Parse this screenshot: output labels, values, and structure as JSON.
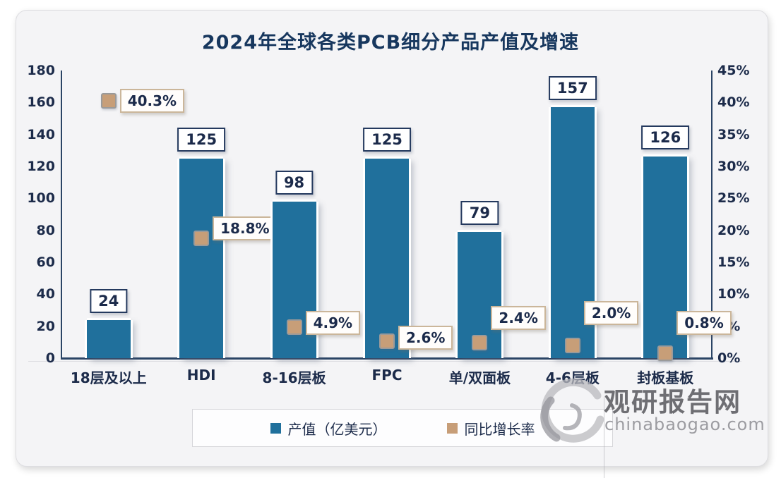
{
  "chart_data": {
    "type": "bar",
    "title": "2024年全球各类PCB细分产品产值及增速",
    "categories": [
      "18层及以上",
      "HDI",
      "8-16层板",
      "FPC",
      "单/双面板",
      "4-6层板",
      "封板基板"
    ],
    "series": [
      {
        "name": "产值（亿美元）",
        "type": "bar",
        "axis": "left",
        "color": "#20709C",
        "values": [
          24,
          125,
          98,
          125,
          79,
          157,
          126
        ],
        "labels": [
          "24",
          "125",
          "98",
          "125",
          "79",
          "157",
          "126"
        ]
      },
      {
        "name": "同比增长率",
        "type": "point",
        "axis": "right",
        "color": "#C79E78",
        "values": [
          40.3,
          18.8,
          4.9,
          2.6,
          2.4,
          2.0,
          0.8
        ],
        "labels": [
          "40.3%",
          "18.8%",
          "4.9%",
          "2.6%",
          "2.4%",
          "2.0%",
          "0.8%"
        ]
      }
    ],
    "left_axis": {
      "min": 0,
      "max": 180,
      "step": 20
    },
    "right_axis": {
      "min": 0,
      "max": 45,
      "step": 5,
      "suffix": "%"
    },
    "grid": false,
    "legend_position": "bottom",
    "growth_label_dy": [
      0,
      -14,
      -6,
      -5,
      -35,
      -46,
      -43
    ]
  },
  "watermark": {
    "brand": "观研报告网",
    "domain": "chinabaogao.com"
  },
  "colors": {
    "bar": "#20709C",
    "marker": "#C79E78",
    "title": "#17375E",
    "axis_text": "#1C2B4A"
  }
}
